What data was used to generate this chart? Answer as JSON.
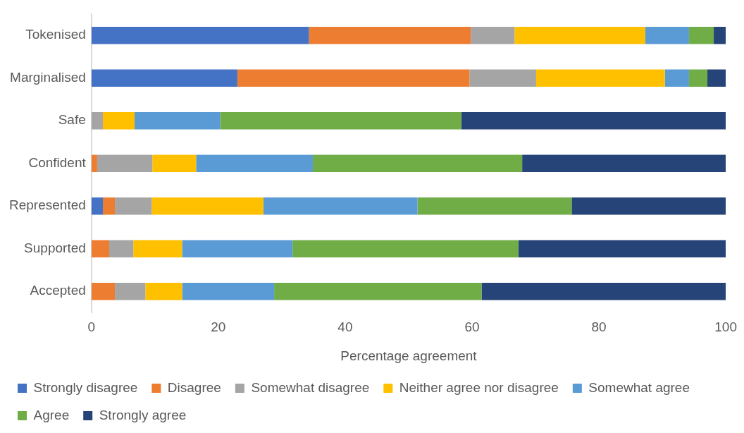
{
  "chart_data": {
    "type": "bar",
    "orientation": "horizontal",
    "stacked": true,
    "xlabel": "Percentage agreement",
    "categories": [
      "Tokenised",
      "Marginalised",
      "Safe",
      "Confident",
      "Represented",
      "Supported",
      "Accepted"
    ],
    "series": [
      {
        "name": "Strongly disagree",
        "color": "#4472c4",
        "values": [
          34.3,
          23.0,
          0,
          0,
          1.8,
          0,
          0
        ]
      },
      {
        "name": "Disagree",
        "color": "#ed7d31",
        "values": [
          25.5,
          36.6,
          0,
          0.9,
          1.9,
          2.8,
          3.7
        ]
      },
      {
        "name": "Somewhat disagree",
        "color": "#a5a5a5",
        "values": [
          6.9,
          10.5,
          1.8,
          8.7,
          5.8,
          3.8,
          4.8
        ]
      },
      {
        "name": "Neither agree nor disagree",
        "color": "#ffc000",
        "values": [
          20.6,
          20.3,
          5.0,
          6.9,
          17.6,
          7.7,
          5.8
        ]
      },
      {
        "name": "Somewhat agree",
        "color": "#5b9bd5",
        "values": [
          6.9,
          3.8,
          13.5,
          18.4,
          24.3,
          17.4,
          14.5
        ]
      },
      {
        "name": "Agree",
        "color": "#70ad47",
        "values": [
          3.9,
          2.9,
          38.0,
          33.0,
          24.3,
          35.6,
          32.7
        ]
      },
      {
        "name": "Strongly agree",
        "color": "#264478",
        "values": [
          1.9,
          2.9,
          41.7,
          32.1,
          24.3,
          32.7,
          38.5
        ]
      }
    ],
    "xlim": [
      0,
      100
    ],
    "xticks": [
      0,
      20,
      40,
      60,
      80,
      100
    ],
    "grid": false,
    "legend": "bottom"
  }
}
